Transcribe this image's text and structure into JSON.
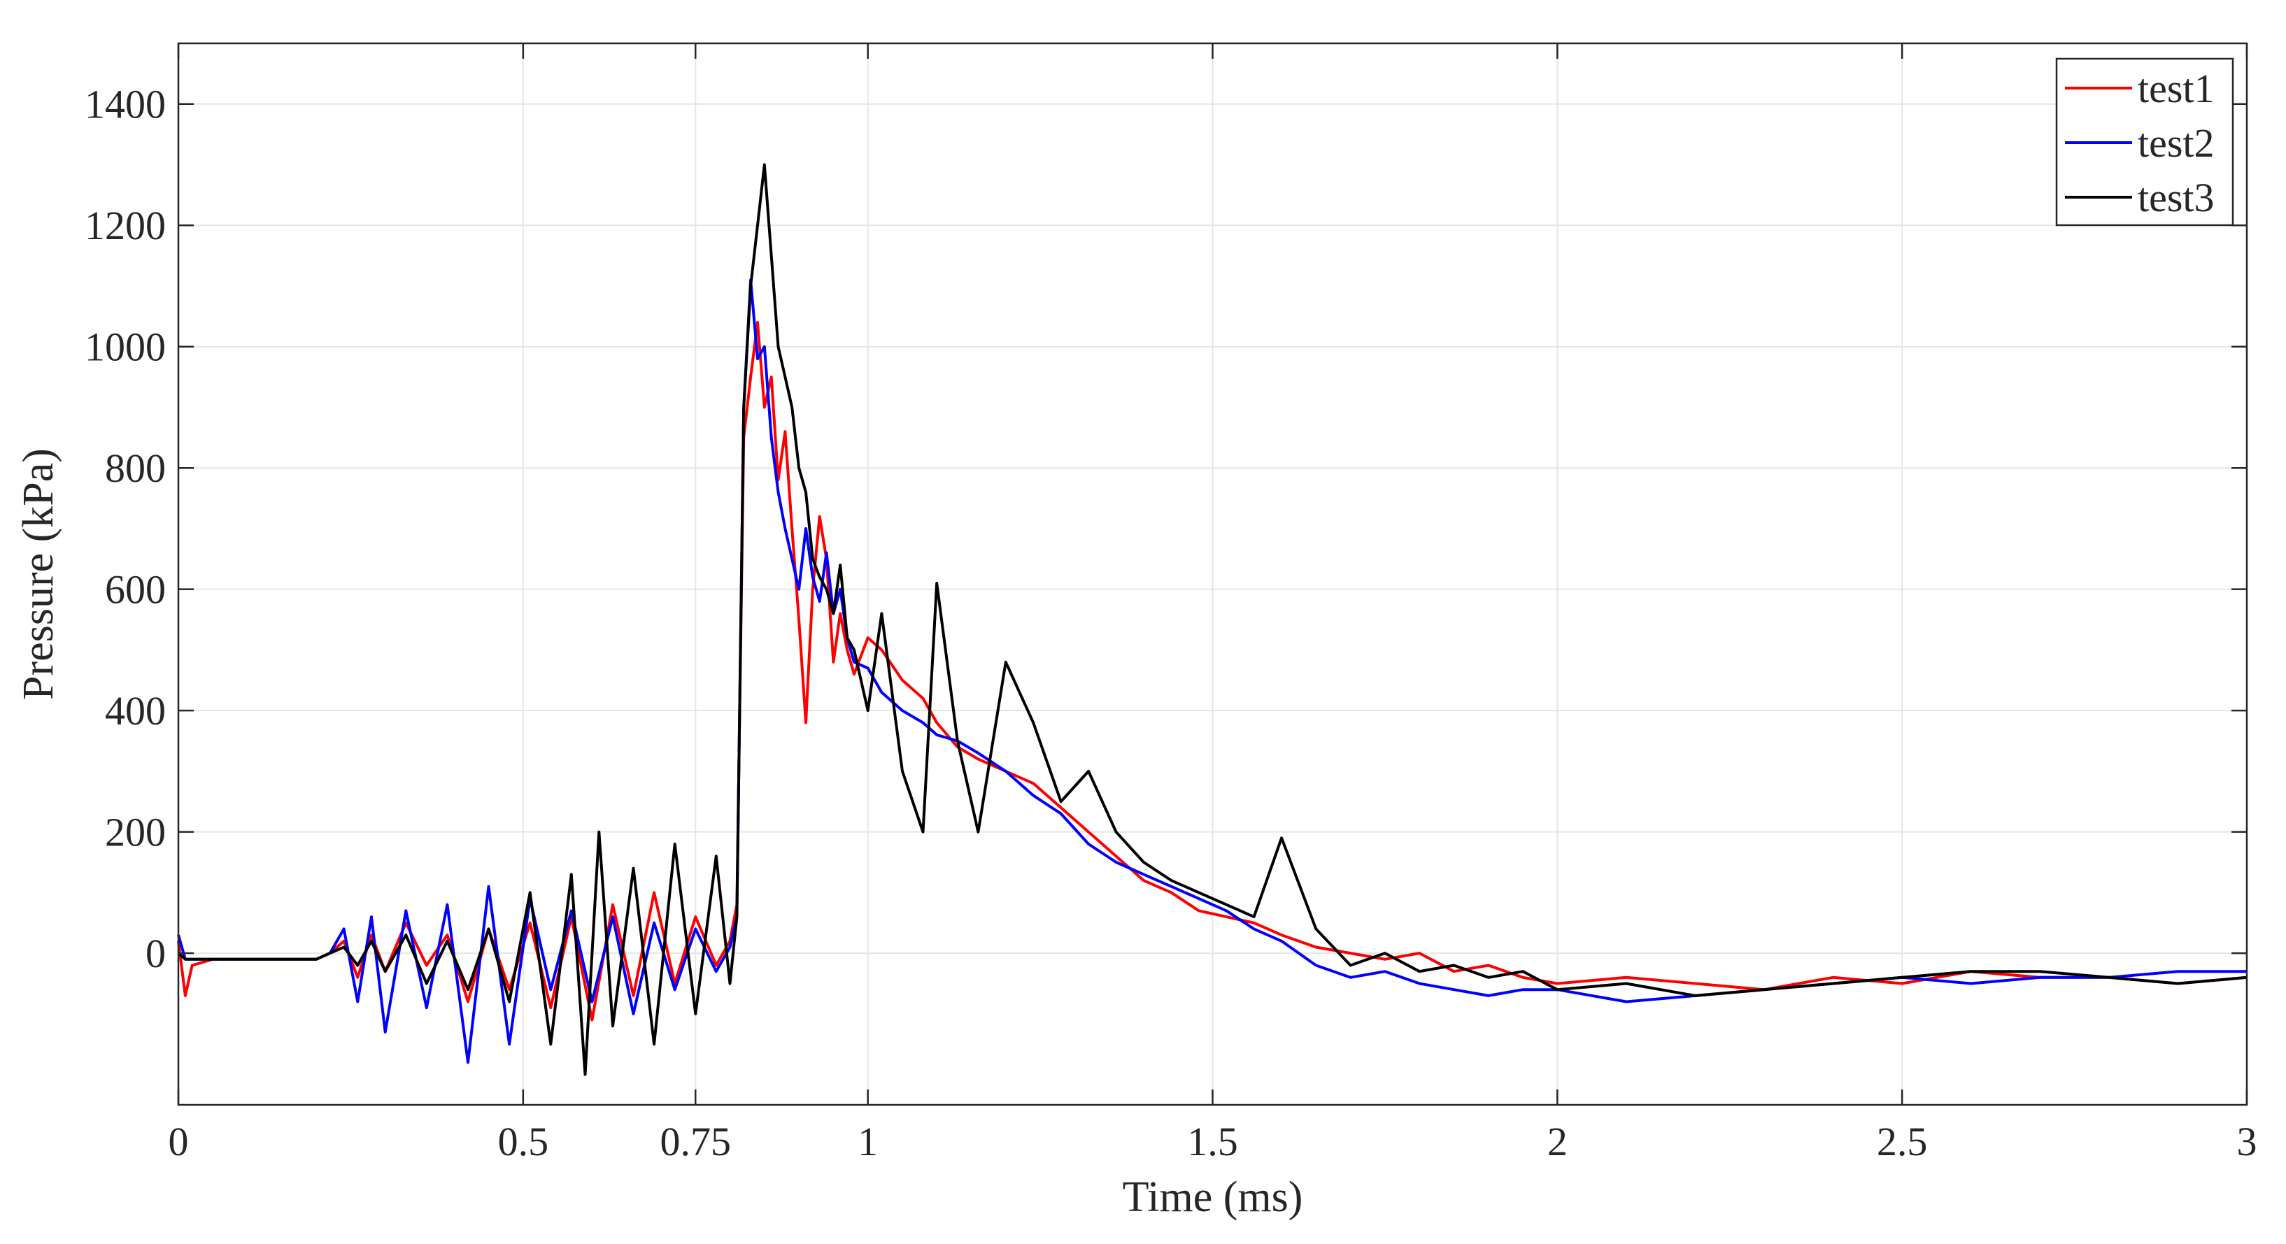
{
  "chart_data": {
    "type": "line",
    "title": "",
    "xlabel": "Time (ms)",
    "ylabel": "Pressure (kPa)",
    "xlim": [
      0,
      3
    ],
    "ylim": [
      -250,
      1500
    ],
    "grid": true,
    "legend_location": "top-right",
    "x_ticks": [
      0,
      0.5,
      0.75,
      1,
      1.5,
      2,
      2.5,
      3
    ],
    "x_tick_labels": [
      "0",
      "0.5",
      "0.75",
      "1",
      "1.5",
      "2",
      "2.5",
      "3"
    ],
    "y_ticks": [
      0,
      200,
      400,
      600,
      800,
      1000,
      1200,
      1400
    ],
    "y_tick_labels": [
      "0",
      "200",
      "400",
      "600",
      "800",
      "1000",
      "1200",
      "1400"
    ],
    "series": [
      {
        "name": "test1",
        "color": "#ff0000",
        "x": [
          0.0,
          0.01,
          0.02,
          0.05,
          0.1,
          0.15,
          0.2,
          0.22,
          0.24,
          0.26,
          0.28,
          0.3,
          0.33,
          0.36,
          0.39,
          0.42,
          0.45,
          0.48,
          0.51,
          0.54,
          0.57,
          0.6,
          0.63,
          0.66,
          0.69,
          0.72,
          0.75,
          0.78,
          0.8,
          0.81,
          0.82,
          0.83,
          0.84,
          0.85,
          0.86,
          0.87,
          0.88,
          0.89,
          0.9,
          0.91,
          0.92,
          0.93,
          0.94,
          0.95,
          0.96,
          0.97,
          0.98,
          1.0,
          1.02,
          1.05,
          1.08,
          1.1,
          1.13,
          1.16,
          1.2,
          1.24,
          1.28,
          1.32,
          1.36,
          1.4,
          1.44,
          1.48,
          1.52,
          1.56,
          1.6,
          1.65,
          1.7,
          1.75,
          1.8,
          1.85,
          1.9,
          1.95,
          2.0,
          2.1,
          2.2,
          2.3,
          2.4,
          2.5,
          2.6,
          2.7,
          2.8,
          2.9,
          3.0
        ],
        "y": [
          20,
          -70,
          -20,
          -10,
          -10,
          -10,
          -10,
          0,
          20,
          -40,
          30,
          -30,
          50,
          -20,
          30,
          -80,
          40,
          -60,
          50,
          -90,
          60,
          -110,
          80,
          -70,
          100,
          -50,
          60,
          -20,
          20,
          80,
          850,
          950,
          1040,
          900,
          950,
          780,
          860,
          700,
          550,
          380,
          600,
          720,
          650,
          480,
          560,
          500,
          460,
          520,
          500,
          450,
          420,
          380,
          340,
          320,
          300,
          280,
          240,
          200,
          160,
          120,
          100,
          70,
          60,
          50,
          30,
          10,
          0,
          -10,
          0,
          -30,
          -20,
          -40,
          -50,
          -40,
          -50,
          -60,
          -40,
          -50,
          -30,
          -40,
          -40,
          -50,
          -40
        ]
      },
      {
        "name": "test2",
        "color": "#0000ff",
        "x": [
          0.0,
          0.01,
          0.02,
          0.05,
          0.1,
          0.15,
          0.2,
          0.22,
          0.24,
          0.26,
          0.28,
          0.3,
          0.33,
          0.36,
          0.39,
          0.42,
          0.45,
          0.48,
          0.51,
          0.54,
          0.57,
          0.6,
          0.63,
          0.66,
          0.69,
          0.72,
          0.75,
          0.78,
          0.8,
          0.81,
          0.82,
          0.83,
          0.84,
          0.85,
          0.86,
          0.87,
          0.88,
          0.89,
          0.9,
          0.91,
          0.92,
          0.93,
          0.94,
          0.95,
          0.96,
          0.97,
          0.98,
          1.0,
          1.02,
          1.05,
          1.08,
          1.1,
          1.13,
          1.16,
          1.2,
          1.24,
          1.28,
          1.32,
          1.36,
          1.4,
          1.44,
          1.48,
          1.52,
          1.56,
          1.6,
          1.65,
          1.7,
          1.75,
          1.8,
          1.85,
          1.9,
          1.95,
          2.0,
          2.1,
          2.2,
          2.3,
          2.4,
          2.5,
          2.6,
          2.7,
          2.8,
          2.9,
          3.0
        ],
        "y": [
          30,
          -10,
          -10,
          -10,
          -10,
          -10,
          -10,
          0,
          40,
          -80,
          60,
          -130,
          70,
          -90,
          80,
          -180,
          110,
          -150,
          90,
          -60,
          70,
          -80,
          60,
          -100,
          50,
          -60,
          40,
          -30,
          10,
          60,
          900,
          1110,
          980,
          1000,
          850,
          760,
          700,
          650,
          600,
          700,
          620,
          580,
          660,
          560,
          600,
          520,
          480,
          470,
          430,
          400,
          380,
          360,
          350,
          330,
          300,
          260,
          230,
          180,
          150,
          130,
          110,
          90,
          70,
          40,
          20,
          -20,
          -40,
          -30,
          -50,
          -60,
          -70,
          -60,
          -60,
          -80,
          -70,
          -60,
          -50,
          -40,
          -50,
          -40,
          -40,
          -30,
          -30
        ]
      },
      {
        "name": "test3",
        "color": "#000000",
        "x": [
          0.0,
          0.01,
          0.02,
          0.05,
          0.1,
          0.15,
          0.2,
          0.22,
          0.24,
          0.26,
          0.28,
          0.3,
          0.33,
          0.36,
          0.39,
          0.42,
          0.45,
          0.48,
          0.51,
          0.54,
          0.57,
          0.59,
          0.61,
          0.63,
          0.66,
          0.69,
          0.72,
          0.75,
          0.78,
          0.8,
          0.81,
          0.82,
          0.83,
          0.84,
          0.85,
          0.86,
          0.87,
          0.88,
          0.89,
          0.9,
          0.91,
          0.92,
          0.93,
          0.94,
          0.95,
          0.96,
          0.97,
          0.98,
          1.0,
          1.02,
          1.05,
          1.08,
          1.1,
          1.13,
          1.16,
          1.2,
          1.24,
          1.28,
          1.32,
          1.36,
          1.4,
          1.44,
          1.48,
          1.52,
          1.56,
          1.6,
          1.65,
          1.7,
          1.75,
          1.8,
          1.85,
          1.9,
          1.95,
          2.0,
          2.1,
          2.2,
          2.3,
          2.4,
          2.5,
          2.6,
          2.7,
          2.8,
          2.9,
          3.0
        ],
        "y": [
          0,
          -10,
          -10,
          -10,
          -10,
          -10,
          -10,
          0,
          10,
          -20,
          20,
          -30,
          30,
          -50,
          20,
          -60,
          40,
          -80,
          100,
          -150,
          130,
          -200,
          200,
          -120,
          140,
          -150,
          180,
          -100,
          160,
          -50,
          60,
          900,
          1100,
          1200,
          1300,
          1150,
          1000,
          950,
          900,
          800,
          760,
          650,
          620,
          600,
          560,
          640,
          520,
          500,
          400,
          560,
          300,
          200,
          610,
          350,
          200,
          480,
          380,
          250,
          300,
          200,
          150,
          120,
          100,
          80,
          60,
          190,
          40,
          -20,
          0,
          -30,
          -20,
          -40,
          -30,
          -60,
          -50,
          -70,
          -60,
          -50,
          -40,
          -30,
          -30,
          -40,
          -50,
          -40
        ]
      }
    ]
  }
}
